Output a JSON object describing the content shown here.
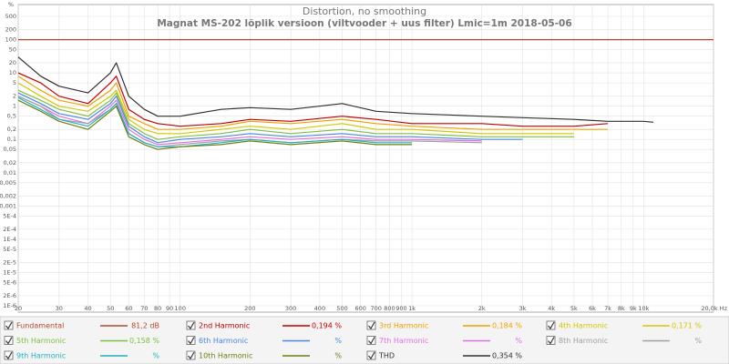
{
  "chart_data": {
    "type": "line",
    "title": "Distortion, no smoothing",
    "subtitle": "Magnat MS-202 lõplik versioon (viltvooder + uus filter) Lmic=1m 2018-05-06",
    "y_label": "%",
    "log_x": true,
    "log_y": true,
    "grid": true,
    "xlim": [
      20,
      20000
    ],
    "ylim": [
      1e-06,
      1000
    ],
    "xticks": [
      20,
      30,
      40,
      50,
      60,
      70,
      80,
      90,
      100,
      200,
      300,
      400,
      500,
      600,
      700,
      800,
      900,
      {
        "value": 1000,
        "label": "1k"
      },
      {
        "value": 2000,
        "label": "2k"
      },
      {
        "value": 3000,
        "label": "3k"
      },
      {
        "value": 4000,
        "label": "4k"
      },
      {
        "value": 5000,
        "label": "5k"
      },
      {
        "value": 6000,
        "label": "6k"
      },
      {
        "value": 7000,
        "label": "7k"
      },
      {
        "value": 8000,
        "label": "8k"
      },
      {
        "value": 9000,
        "label": "9k"
      },
      {
        "value": 10000,
        "label": "10k"
      },
      {
        "value": 20000,
        "label": "20,0k Hz"
      }
    ],
    "yticks": [
      500,
      200,
      100,
      50,
      20,
      10,
      5,
      2,
      1,
      {
        "value": 0.5,
        "label": "0,5"
      },
      {
        "value": 0.2,
        "label": "0,2"
      },
      {
        "value": 0.1,
        "label": "0,1"
      },
      {
        "value": 0.05,
        "label": "0,05"
      },
      {
        "value": 0.02,
        "label": "0,02"
      },
      {
        "value": 0.01,
        "label": "0,01"
      },
      {
        "value": 0.005,
        "label": "0,005"
      },
      {
        "value": 0.002,
        "label": "0,002"
      },
      {
        "value": 0.001,
        "label": "0,001"
      },
      {
        "value": 0.0005,
        "label": "5E-4"
      },
      {
        "value": 0.0002,
        "label": "2E-4"
      },
      {
        "value": 0.0001,
        "label": "1E-4"
      },
      {
        "value": 5e-05,
        "label": "5E-5"
      },
      {
        "value": 2e-05,
        "label": "2E-5"
      },
      {
        "value": 1e-05,
        "label": "1E-5"
      },
      {
        "value": 5e-06,
        "label": "5E-6"
      },
      {
        "value": 2e-06,
        "label": "2E-6"
      },
      {
        "value": 1e-06,
        "label": "1E-6"
      }
    ],
    "x": [
      20,
      25,
      30,
      40,
      50,
      53,
      60,
      70,
      80,
      100,
      150,
      200,
      300,
      500,
      700,
      1000,
      2000,
      3000,
      5000,
      7000,
      10000,
      11000
    ],
    "series": [
      {
        "name": "Fundamental",
        "readout": "81,2 dB",
        "color": "#b0482a",
        "x": [
          20,
          20000
        ],
        "values": [
          100,
          100
        ]
      },
      {
        "name": "2nd Harmonic",
        "readout": "0,194 %",
        "color": "#c00000",
        "values": [
          10,
          5,
          2,
          1.2,
          5,
          8,
          0.8,
          0.4,
          0.3,
          0.25,
          0.3,
          0.4,
          0.35,
          0.5,
          0.4,
          0.3,
          0.3,
          0.25,
          0.25,
          0.3,
          null,
          null
        ]
      },
      {
        "name": "3rd Harmonic",
        "readout": "0,184 %",
        "color": "#f0a000",
        "values": [
          8,
          3,
          1.5,
          1,
          3,
          5,
          0.5,
          0.3,
          0.2,
          0.2,
          0.25,
          0.35,
          0.3,
          0.4,
          0.3,
          0.25,
          0.2,
          0.2,
          0.2,
          0.2,
          null,
          null
        ]
      },
      {
        "name": "4th Harmonic",
        "readout": "0,171 %",
        "color": "#d0c800",
        "values": [
          5,
          2,
          1,
          0.7,
          2,
          3,
          0.4,
          0.2,
          0.15,
          0.15,
          0.2,
          0.25,
          0.2,
          0.3,
          0.2,
          0.2,
          0.15,
          0.15,
          0.15,
          null,
          null,
          null
        ]
      },
      {
        "name": "5th Harmonic",
        "readout": "0,158 %",
        "color": "#80c040",
        "values": [
          3,
          1.5,
          0.8,
          0.5,
          1.5,
          2.5,
          0.3,
          0.15,
          0.1,
          0.12,
          0.15,
          0.2,
          0.15,
          0.2,
          0.15,
          0.15,
          0.12,
          0.12,
          0.12,
          null,
          null,
          null
        ]
      },
      {
        "name": "6th Harmonic",
        "readout": "%",
        "color": "#4a88e0",
        "values": [
          2.5,
          1.2,
          0.6,
          0.4,
          1.2,
          2,
          0.25,
          0.12,
          0.08,
          0.1,
          0.12,
          0.15,
          0.12,
          0.15,
          0.12,
          0.12,
          0.1,
          0.1,
          null,
          null,
          null,
          null
        ]
      },
      {
        "name": "7th Harmonic",
        "readout": "%",
        "color": "#e070e0",
        "values": [
          2,
          1,
          0.5,
          0.3,
          1,
          1.5,
          0.2,
          0.1,
          0.07,
          0.08,
          0.1,
          0.12,
          0.1,
          0.12,
          0.1,
          0.1,
          0.09,
          null,
          null,
          null,
          null,
          null
        ]
      },
      {
        "name": "8th Harmonic",
        "readout": "%",
        "color": "#a0a0a0",
        "values": [
          2,
          1,
          0.4,
          0.3,
          0.8,
          1.2,
          0.15,
          0.08,
          0.06,
          0.07,
          0.09,
          0.1,
          0.08,
          0.1,
          0.09,
          0.09,
          0.08,
          null,
          null,
          null,
          null,
          null
        ]
      },
      {
        "name": "9th Harmonic",
        "readout": "%",
        "color": "#20b0c0",
        "values": [
          1.8,
          0.8,
          0.4,
          0.25,
          0.8,
          1.2,
          0.15,
          0.08,
          0.06,
          0.06,
          0.08,
          0.1,
          0.08,
          0.1,
          0.08,
          0.08,
          null,
          null,
          null,
          null,
          null,
          null
        ]
      },
      {
        "name": "10th Harmonic",
        "readout": "%",
        "color": "#6b7f10",
        "values": [
          1.5,
          0.7,
          0.35,
          0.2,
          0.7,
          1,
          0.12,
          0.07,
          0.05,
          0.06,
          0.07,
          0.09,
          0.07,
          0.09,
          0.07,
          0.07,
          null,
          null,
          null,
          null,
          null,
          null
        ]
      },
      {
        "name": "THD",
        "readout": "0,354 %",
        "color": "#303030",
        "values": [
          30,
          8,
          4,
          2.5,
          10,
          20,
          2,
          0.8,
          0.5,
          0.5,
          0.8,
          0.9,
          0.8,
          1.2,
          0.7,
          0.6,
          0.5,
          0.45,
          0.4,
          0.35,
          0.35,
          0.33
        ]
      }
    ]
  }
}
